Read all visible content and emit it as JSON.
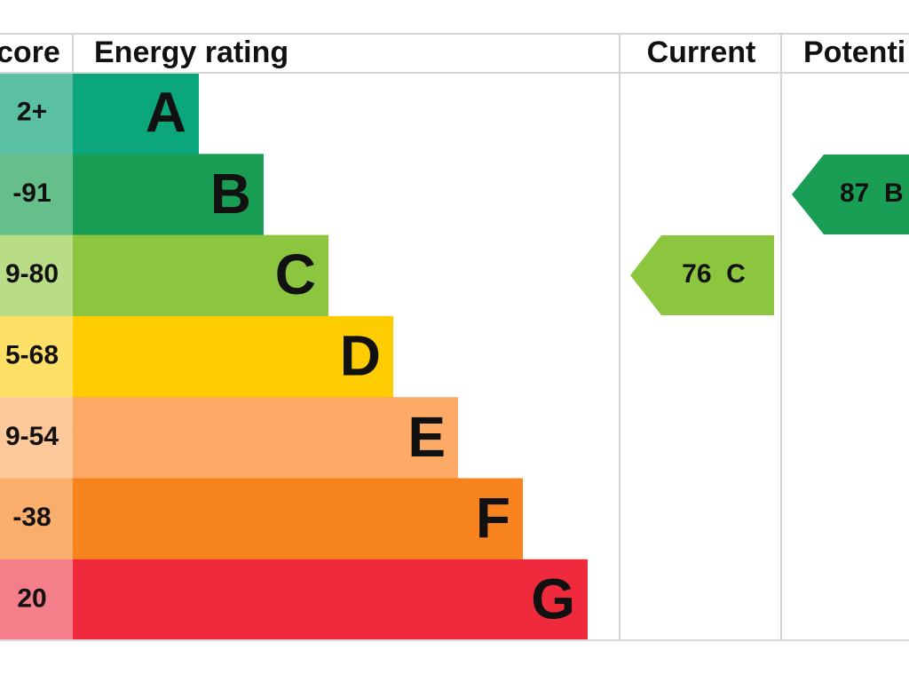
{
  "header": {
    "score": "core",
    "rating": "Energy rating",
    "current": "Current",
    "potential": "Potenti"
  },
  "rows": [
    {
      "score": "2+",
      "band": "A"
    },
    {
      "score": "-91",
      "band": "B"
    },
    {
      "score": "9-80",
      "band": "C"
    },
    {
      "score": "5-68",
      "band": "D"
    },
    {
      "score": "9-54",
      "band": "E"
    },
    {
      "score": "-38",
      "band": "F"
    },
    {
      "score": "20",
      "band": "G"
    }
  ],
  "current": {
    "label": "76  C"
  },
  "potential": {
    "label": "87  B"
  }
}
